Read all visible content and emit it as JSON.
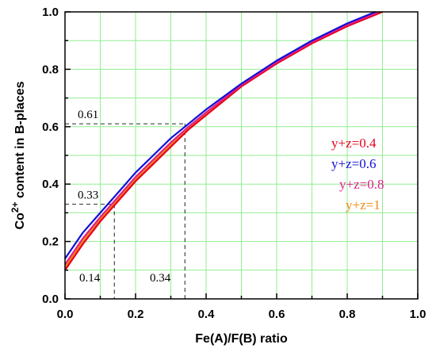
{
  "chart_data": {
    "type": "line",
    "xlabel": "Fe(A)/F(B) ratio",
    "ylabel_parts": {
      "base": "Co",
      "sup": "2+",
      "rest": " content in B-places"
    },
    "xlim": [
      0.0,
      1.0
    ],
    "ylim": [
      0.0,
      1.0
    ],
    "xticks": [
      "0.0",
      "0.2",
      "0.4",
      "0.6",
      "0.8",
      "1.0"
    ],
    "yticks": [
      "0.0",
      "0.2",
      "0.4",
      "0.6",
      "0.8",
      "1.0"
    ],
    "grid": true,
    "legend_position": "right",
    "series": [
      {
        "name": "y+z=0.4",
        "color": "#e8001c",
        "x": [
          0.0,
          0.05,
          0.1,
          0.15,
          0.2,
          0.25,
          0.3,
          0.35,
          0.4,
          0.5,
          0.6,
          0.7,
          0.8,
          0.9
        ],
        "y": [
          0.1,
          0.19,
          0.27,
          0.34,
          0.41,
          0.47,
          0.53,
          0.59,
          0.64,
          0.74,
          0.82,
          0.89,
          0.95,
          1.0
        ]
      },
      {
        "name": "y+z=0.6",
        "color": "#1010d8",
        "x": [
          0.0,
          0.05,
          0.1,
          0.15,
          0.2,
          0.25,
          0.3,
          0.35,
          0.4,
          0.5,
          0.6,
          0.7,
          0.8,
          0.88
        ],
        "y": [
          0.14,
          0.23,
          0.3,
          0.37,
          0.44,
          0.5,
          0.56,
          0.61,
          0.66,
          0.75,
          0.83,
          0.9,
          0.96,
          1.0
        ]
      },
      {
        "name": "y+z=0.8",
        "color": "#e0208a",
        "x": [
          0.0,
          0.05,
          0.1,
          0.15,
          0.2,
          0.25,
          0.3,
          0.35,
          0.4,
          0.5,
          0.6,
          0.7,
          0.8,
          0.89
        ],
        "y": [
          0.12,
          0.21,
          0.285,
          0.355,
          0.425,
          0.485,
          0.545,
          0.6,
          0.65,
          0.745,
          0.825,
          0.895,
          0.955,
          1.0
        ]
      },
      {
        "name": "y+z=1",
        "color": "#f08a10",
        "x": [
          0.0,
          0.05,
          0.1,
          0.15,
          0.2,
          0.25,
          0.3,
          0.35,
          0.4,
          0.5,
          0.6,
          0.7,
          0.8,
          0.895
        ],
        "y": [
          0.11,
          0.2,
          0.278,
          0.347,
          0.417,
          0.478,
          0.538,
          0.595,
          0.645,
          0.742,
          0.822,
          0.892,
          0.952,
          1.0
        ]
      }
    ],
    "annotations": [
      {
        "x": 0.14,
        "y": 0.33,
        "x_label": "0.14",
        "y_label": "0.33"
      },
      {
        "x": 0.34,
        "y": 0.61,
        "x_label": "0.34",
        "y_label": "0.61"
      }
    ]
  }
}
